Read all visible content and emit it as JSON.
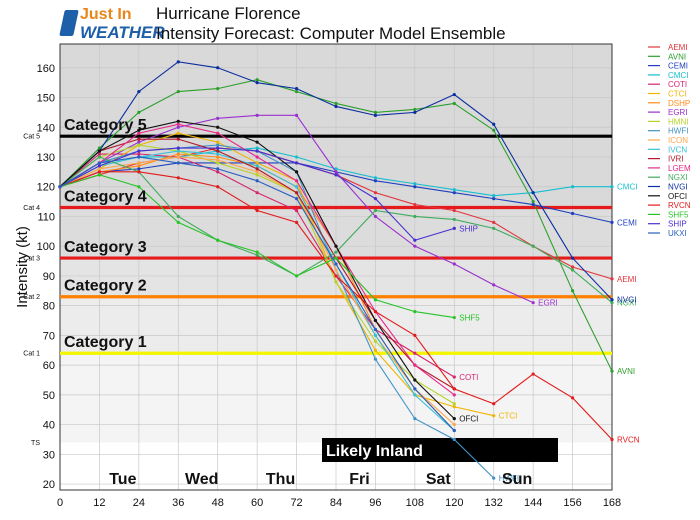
{
  "logo": {
    "line1": "Just In",
    "line2": "WEATHER"
  },
  "header": {
    "title_line1": "Hurricane Florence",
    "title_line2": "Intensity Forecast: Computer Model Ensemble"
  },
  "chart_data": {
    "type": "line",
    "xlabel": "",
    "ylabel": "Intensity (kt)",
    "xlim": [
      0,
      168
    ],
    "ylim": [
      18,
      168
    ],
    "xticks": [
      0,
      12,
      24,
      36,
      48,
      60,
      72,
      84,
      96,
      108,
      120,
      132,
      144,
      156,
      168
    ],
    "yticks": [
      20,
      30,
      40,
      50,
      60,
      70,
      80,
      90,
      100,
      110,
      120,
      130,
      140,
      150,
      160
    ],
    "day_labels": [
      {
        "text": "Tue",
        "x": 24
      },
      {
        "text": "Wed",
        "x": 48
      },
      {
        "text": "Thu",
        "x": 72
      },
      {
        "text": "Fri",
        "x": 96
      },
      {
        "text": "Sat",
        "x": 120
      },
      {
        "text": "Sun",
        "x": 144
      }
    ],
    "inland_label": "Likely Inland",
    "inland_start_y": 34,
    "categories": [
      {
        "name": "Category 5",
        "axis_label": "Cat 5",
        "threshold": 137,
        "color": "#000000",
        "band": "#d9d9d9"
      },
      {
        "name": "Category 4",
        "axis_label": "Cat 4",
        "threshold": 113,
        "color": "#e41a1c",
        "band": "#d9d9d9"
      },
      {
        "name": "Category 3",
        "axis_label": "Cat 3",
        "threshold": 96,
        "color": "#e41a1c",
        "band": "#dcdcdc"
      },
      {
        "name": "Category 2",
        "axis_label": "Cat 2",
        "threshold": 83,
        "color": "#ff7f00",
        "band": "#e4e4e4"
      },
      {
        "name": "Category 1",
        "axis_label": "Cat 1",
        "threshold": 64,
        "color": "#f5f500",
        "band": "#ececec"
      },
      {
        "name": "",
        "axis_label": "TS",
        "threshold": 34,
        "color": "",
        "band": "#f4f4f4"
      }
    ],
    "series": [
      {
        "name": "AEMI",
        "color": "#e3343c",
        "x": [
          0,
          12,
          24,
          36,
          48,
          60,
          72,
          84,
          96,
          108,
          120,
          132,
          144,
          156,
          168
        ],
        "y": [
          120,
          124,
          128,
          130,
          133,
          132,
          128,
          124,
          118,
          114,
          112,
          108,
          100,
          93,
          89
        ],
        "end_label": "AEMI"
      },
      {
        "name": "AVNI",
        "color": "#2ca02c",
        "x": [
          0,
          12,
          24,
          36,
          48,
          60,
          72,
          84,
          96,
          108,
          120,
          132,
          144,
          156,
          168
        ],
        "y": [
          120,
          133,
          145,
          152,
          153,
          156,
          152,
          148,
          145,
          146,
          148,
          139,
          115,
          85,
          58
        ],
        "end_label": "AVNI"
      },
      {
        "name": "CEMI",
        "color": "#1f3fbf",
        "x": [
          0,
          12,
          24,
          36,
          48,
          60,
          72,
          84,
          96,
          108,
          120,
          132,
          144,
          156,
          168
        ],
        "y": [
          120,
          125,
          126,
          128,
          128,
          128,
          128,
          125,
          122,
          120,
          118,
          116,
          114,
          111,
          108
        ],
        "end_label": "CEMI"
      },
      {
        "name": "CMCI",
        "color": "#17becf",
        "x": [
          0,
          12,
          24,
          36,
          48,
          60,
          72,
          84,
          96,
          108,
          120,
          132,
          144,
          156,
          168
        ],
        "y": [
          120,
          128,
          130,
          130,
          132,
          133,
          130,
          126,
          123,
          121,
          119,
          117,
          118,
          120,
          120
        ],
        "end_label": "CMCI"
      },
      {
        "name": "COTI",
        "color": "#d6246e",
        "x": [
          0,
          12,
          24,
          36,
          48,
          60,
          72,
          84,
          96,
          108,
          120
        ],
        "y": [
          120,
          131,
          131,
          130,
          125,
          118,
          112,
          90,
          72,
          64,
          56
        ],
        "end_label": "COTI"
      },
      {
        "name": "CTCI",
        "color": "#f0b400",
        "x": [
          0,
          12,
          24,
          36,
          48,
          60,
          72,
          84,
          96,
          108,
          120,
          132
        ],
        "y": [
          120,
          126,
          134,
          138,
          135,
          128,
          122,
          88,
          65,
          50,
          46,
          43
        ],
        "end_label": "CTCI"
      },
      {
        "name": "DSHP",
        "color": "#ff8c1a",
        "x": [
          0,
          12,
          24,
          36,
          48,
          60,
          72,
          84,
          96,
          108,
          120
        ],
        "y": [
          120,
          125,
          127,
          131,
          130,
          127,
          120,
          100,
          72,
          52,
          38
        ],
        "end_label": ""
      },
      {
        "name": "EGRI",
        "color": "#9b30d0",
        "x": [
          0,
          12,
          24,
          36,
          48,
          60,
          72,
          84,
          96,
          108,
          120,
          132,
          144
        ],
        "y": [
          120,
          128,
          135,
          140,
          143,
          144,
          144,
          125,
          110,
          100,
          94,
          87,
          81
        ],
        "end_label": "EGRI"
      },
      {
        "name": "HMNI",
        "color": "#b5d32b",
        "x": [
          0,
          12,
          24,
          36,
          48,
          60,
          72,
          84,
          96,
          108,
          120
        ],
        "y": [
          120,
          130,
          134,
          132,
          128,
          124,
          118,
          88,
          68,
          55,
          47
        ],
        "end_label": ""
      },
      {
        "name": "HWFI",
        "color": "#4292c6",
        "x": [
          0,
          12,
          24,
          36,
          48,
          60,
          72,
          84,
          96,
          108,
          120,
          132
        ],
        "y": [
          120,
          128,
          132,
          133,
          134,
          132,
          125,
          92,
          62,
          42,
          35,
          22
        ],
        "end_label": "HWFI"
      },
      {
        "name": "ICON",
        "color": "#ffa64d",
        "x": [
          0,
          12,
          24,
          36,
          48,
          60,
          72,
          84,
          96,
          108,
          120
        ],
        "y": [
          120,
          126,
          128,
          130,
          129,
          125,
          118,
          92,
          70,
          52,
          40
        ],
        "end_label": ""
      },
      {
        "name": "IVCN",
        "color": "#35c0d6",
        "x": [
          0,
          12,
          24,
          36,
          48,
          60,
          72,
          84,
          96,
          108,
          120
        ],
        "y": [
          120,
          127,
          130,
          132,
          131,
          127,
          120,
          94,
          70,
          50,
          38
        ],
        "end_label": ""
      },
      {
        "name": "IVRI",
        "color": "#b2182b",
        "x": [
          0,
          12,
          24,
          36,
          48,
          60,
          72,
          84,
          96,
          108,
          120
        ],
        "y": [
          120,
          132,
          136,
          136,
          132,
          126,
          118,
          96,
          75,
          60,
          52
        ],
        "end_label": ""
      },
      {
        "name": "LGEM",
        "color": "#e7298a",
        "x": [
          0,
          12,
          24,
          36,
          48,
          60,
          72,
          84,
          96,
          108,
          120
        ],
        "y": [
          120,
          128,
          138,
          141,
          138,
          130,
          122,
          100,
          78,
          60,
          50
        ],
        "end_label": ""
      },
      {
        "name": "NGXI",
        "color": "#41ab5d",
        "x": [
          0,
          12,
          24,
          36,
          48,
          60,
          72,
          84,
          96,
          108,
          120,
          132,
          144,
          156,
          168
        ],
        "y": [
          120,
          130,
          125,
          110,
          102,
          97,
          90,
          98,
          112,
          110,
          109,
          106,
          100,
          92,
          81
        ],
        "end_label": "NGXI"
      },
      {
        "name": "NVGI",
        "color": "#0b2ea0",
        "x": [
          0,
          12,
          24,
          36,
          48,
          60,
          72,
          84,
          96,
          108,
          120,
          132,
          144,
          156,
          168
        ],
        "y": [
          120,
          132,
          152,
          162,
          160,
          155,
          153,
          147,
          144,
          145,
          151,
          141,
          118,
          96,
          82
        ],
        "end_label": "NVGI"
      },
      {
        "name": "OFCI",
        "color": "#111111",
        "x": [
          0,
          12,
          24,
          36,
          48,
          60,
          72,
          84,
          96,
          108,
          120
        ],
        "y": [
          120,
          132,
          139,
          142,
          140,
          135,
          125,
          100,
          75,
          55,
          42
        ],
        "end_label": "OFCI"
      },
      {
        "name": "RVCN",
        "color": "#e31a1c",
        "x": [
          0,
          12,
          24,
          36,
          48,
          60,
          72,
          84,
          96,
          108,
          120,
          132,
          144,
          156,
          168
        ],
        "y": [
          120,
          125,
          125,
          123,
          120,
          112,
          108,
          90,
          78,
          70,
          52,
          47,
          57,
          49,
          35
        ],
        "end_label": "RVCN"
      },
      {
        "name": "SHF5",
        "color": "#27c427",
        "x": [
          0,
          12,
          24,
          36,
          48,
          60,
          72,
          84,
          96,
          108,
          120
        ],
        "y": [
          120,
          124,
          120,
          108,
          102,
          98,
          90,
          96,
          82,
          78,
          76
        ],
        "end_label": "SHF5"
      },
      {
        "name": "SHIP",
        "color": "#4a2fd0",
        "x": [
          0,
          12,
          24,
          36,
          48,
          60,
          72,
          84,
          96,
          108,
          120
        ],
        "y": [
          120,
          127,
          132,
          133,
          133,
          132,
          128,
          124,
          116,
          102,
          106
        ],
        "end_label": "SHIP"
      },
      {
        "name": "UKXI",
        "color": "#2a5fbf",
        "x": [
          0,
          12,
          24,
          36,
          48,
          60,
          72,
          84,
          96,
          108,
          120
        ],
        "y": [
          120,
          128,
          130,
          128,
          126,
          122,
          116,
          94,
          72,
          52,
          38
        ],
        "end_label": ""
      }
    ],
    "legend_position": "right"
  }
}
